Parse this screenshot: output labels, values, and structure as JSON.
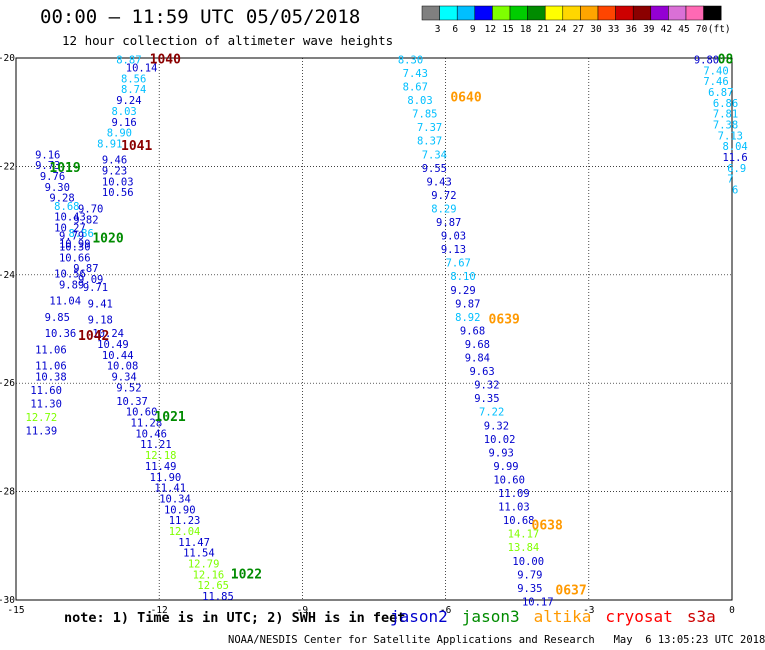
{
  "title": "00:00 – 11:59 UTC 05/05/2018",
  "subtitle": "12 hour collection of altimeter wave heights",
  "note": "note: 1) Time is in UTC; 2) SWH is in feet",
  "footer": "NOAA/NESDIS Center for Satellite Applications and Research   May  6 13:05:23 UTC 2018",
  "scale": {
    "labels": [
      "3",
      "6",
      "9",
      "12",
      "15",
      "18",
      "21",
      "24",
      "27",
      "30",
      "33",
      "36",
      "39",
      "42",
      "45",
      "70",
      "(ft)"
    ],
    "colors": [
      "#808080",
      "#00ffff",
      "#00bfff",
      "#0000ff",
      "#7fff00",
      "#00cd00",
      "#008b00",
      "#ffff00",
      "#ffd700",
      "#ffa500",
      "#ff4500",
      "#cd0000",
      "#8b0000",
      "#9400d3",
      "#da70d6",
      "#ff69b4",
      "#000000"
    ]
  },
  "legend": [
    {
      "name": "jason2",
      "color": "#0000cd"
    },
    {
      "name": "jason3",
      "color": "#008b00"
    },
    {
      "name": "altika",
      "color": "#ff9900"
    },
    {
      "name": "cryosat",
      "color": "#ff0000"
    },
    {
      "name": "s3a",
      "color": "#cc0000"
    }
  ],
  "chart_data": {
    "type": "scatter",
    "x_ticks": [
      "-15",
      "-12",
      "-9",
      "-6",
      "-3",
      "0"
    ],
    "y_ticks": [
      "-20",
      "-22",
      "-24",
      "-26",
      "-28",
      "-30"
    ],
    "xlim": [
      -15,
      0
    ],
    "ylim": [
      -30,
      -20
    ],
    "grid": true,
    "pass_labels": [
      {
        "text": "1040",
        "lon": -12.2,
        "lat": -20.1,
        "color": "#8b0000"
      },
      {
        "text": "1041",
        "lon": -12.8,
        "lat": -21.7,
        "color": "#8b0000"
      },
      {
        "text": "1019",
        "lon": -14.3,
        "lat": -22.1,
        "color": "#008b00"
      },
      {
        "text": "1020",
        "lon": -13.4,
        "lat": -23.4,
        "color": "#008b00"
      },
      {
        "text": "1042",
        "lon": -13.7,
        "lat": -25.2,
        "color": "#8b0000"
      },
      {
        "text": "1021",
        "lon": -12.1,
        "lat": -26.7,
        "color": "#008b00"
      },
      {
        "text": "1022",
        "lon": -10.5,
        "lat": -29.6,
        "color": "#008b00"
      },
      {
        "text": "0640",
        "lon": -5.9,
        "lat": -20.8,
        "color": "#ff9900"
      },
      {
        "text": "0639",
        "lon": -5.1,
        "lat": -24.9,
        "color": "#ff9900"
      },
      {
        "text": "0638",
        "lon": -4.2,
        "lat": -28.7,
        "color": "#ff9900"
      },
      {
        "text": "0637",
        "lon": -3.7,
        "lat": -29.9,
        "color": "#ff9900"
      },
      {
        "text": "08",
        "lon": -0.3,
        "lat": -20.1,
        "color": "#008b00"
      }
    ],
    "points": [
      {
        "v": "8.87",
        "lon": -12.9,
        "lat": -20.1,
        "c": "#00bfff"
      },
      {
        "v": "10.14",
        "lon": -12.7,
        "lat": -20.25,
        "c": "#0000cd"
      },
      {
        "v": "8.56",
        "lon": -12.8,
        "lat": -20.45,
        "c": "#00bfff"
      },
      {
        "v": "8.74",
        "lon": -12.8,
        "lat": -20.65,
        "c": "#00bfff"
      },
      {
        "v": "9.24",
        "lon": -12.9,
        "lat": -20.85,
        "c": "#0000cd"
      },
      {
        "v": "8.03",
        "lon": -13.0,
        "lat": -21.05,
        "c": "#00bfff"
      },
      {
        "v": "9.16",
        "lon": -13.0,
        "lat": -21.25,
        "c": "#0000cd"
      },
      {
        "v": "8.90",
        "lon": -13.1,
        "lat": -21.45,
        "c": "#00bfff"
      },
      {
        "v": "8.91",
        "lon": -13.3,
        "lat": -21.65,
        "c": "#00bfff"
      },
      {
        "v": "9.16",
        "lon": -14.6,
        "lat": -21.85,
        "c": "#0000cd"
      },
      {
        "v": "9.46",
        "lon": -13.2,
        "lat": -21.95,
        "c": "#0000cd"
      },
      {
        "v": "9.73",
        "lon": -14.6,
        "lat": -22.05,
        "c": "#0000cd"
      },
      {
        "v": "9.23",
        "lon": -13.2,
        "lat": -22.15,
        "c": "#0000cd"
      },
      {
        "v": "9.76",
        "lon": -14.5,
        "lat": -22.25,
        "c": "#0000cd"
      },
      {
        "v": "10.03",
        "lon": -13.2,
        "lat": -22.35,
        "c": "#0000cd"
      },
      {
        "v": "9.30",
        "lon": -14.4,
        "lat": -22.45,
        "c": "#0000cd"
      },
      {
        "v": "10.56",
        "lon": -13.2,
        "lat": -22.55,
        "c": "#0000cd"
      },
      {
        "v": "9.28",
        "lon": -14.3,
        "lat": -22.65,
        "c": "#0000cd"
      },
      {
        "v": "8.68",
        "lon": -14.2,
        "lat": -22.8,
        "c": "#00bfff"
      },
      {
        "v": "9.70",
        "lon": -13.7,
        "lat": -22.85,
        "c": "#0000cd"
      },
      {
        "v": "10.43",
        "lon": -14.2,
        "lat": -23.0,
        "c": "#0000cd"
      },
      {
        "v": "9.82",
        "lon": -13.8,
        "lat": -23.05,
        "c": "#0000cd"
      },
      {
        "v": "10.27",
        "lon": -14.2,
        "lat": -23.2,
        "c": "#0000cd"
      },
      {
        "v": "8.86",
        "lon": -13.9,
        "lat": -23.3,
        "c": "#00bfff"
      },
      {
        "v": "9.79",
        "lon": -14.1,
        "lat": -23.35,
        "c": "#0000cd"
      },
      {
        "v": "10.99",
        "lon": -14.1,
        "lat": -23.5,
        "c": "#0000cd"
      },
      {
        "v": "10.30",
        "lon": -14.1,
        "lat": -23.55,
        "c": "#0000cd"
      },
      {
        "v": "10.66",
        "lon": -14.1,
        "lat": -23.75,
        "c": "#0000cd"
      },
      {
        "v": "9.87",
        "lon": -13.8,
        "lat": -23.95,
        "c": "#0000cd"
      },
      {
        "v": "10.56",
        "lon": -14.2,
        "lat": -24.05,
        "c": "#0000cd"
      },
      {
        "v": "9.09",
        "lon": -13.7,
        "lat": -24.15,
        "c": "#0000cd"
      },
      {
        "v": "9.89",
        "lon": -14.1,
        "lat": -24.25,
        "c": "#0000cd"
      },
      {
        "v": "9.71",
        "lon": -13.6,
        "lat": -24.3,
        "c": "#0000cd"
      },
      {
        "v": "11.04",
        "lon": -14.3,
        "lat": -24.55,
        "c": "#0000cd"
      },
      {
        "v": "9.41",
        "lon": -13.5,
        "lat": -24.6,
        "c": "#0000cd"
      },
      {
        "v": "9.85",
        "lon": -14.4,
        "lat": -24.85,
        "c": "#0000cd"
      },
      {
        "v": "9.18",
        "lon": -13.5,
        "lat": -24.9,
        "c": "#0000cd"
      },
      {
        "v": "10.36",
        "lon": -14.4,
        "lat": -25.15,
        "c": "#0000cd"
      },
      {
        "v": "10.24",
        "lon": -13.4,
        "lat": -25.15,
        "c": "#0000cd"
      },
      {
        "v": "10.49",
        "lon": -13.3,
        "lat": -25.35,
        "c": "#0000cd"
      },
      {
        "v": "11.06",
        "lon": -14.6,
        "lat": -25.45,
        "c": "#0000cd"
      },
      {
        "v": "10.44",
        "lon": -13.2,
        "lat": -25.55,
        "c": "#0000cd"
      },
      {
        "v": "11.06",
        "lon": -14.6,
        "lat": -25.75,
        "c": "#0000cd"
      },
      {
        "v": "10.08",
        "lon": -13.1,
        "lat": -25.75,
        "c": "#0000cd"
      },
      {
        "v": "10.38",
        "lon": -14.6,
        "lat": -25.95,
        "c": "#0000cd"
      },
      {
        "v": "9.34",
        "lon": -13.0,
        "lat": -25.95,
        "c": "#0000cd"
      },
      {
        "v": "11.60",
        "lon": -14.7,
        "lat": -26.2,
        "c": "#0000cd"
      },
      {
        "v": "9.52",
        "lon": -12.9,
        "lat": -26.15,
        "c": "#0000cd"
      },
      {
        "v": "11.30",
        "lon": -14.7,
        "lat": -26.45,
        "c": "#0000cd"
      },
      {
        "v": "10.37",
        "lon": -12.9,
        "lat": -26.4,
        "c": "#0000cd"
      },
      {
        "v": "12.72",
        "lon": -14.8,
        "lat": -26.7,
        "c": "#7fff00"
      },
      {
        "v": "10.60",
        "lon": -12.7,
        "lat": -26.6,
        "c": "#0000cd"
      },
      {
        "v": "11.28",
        "lon": -12.6,
        "lat": -26.8,
        "c": "#0000cd"
      },
      {
        "v": "11.39",
        "lon": -14.8,
        "lat": -26.95,
        "c": "#0000cd"
      },
      {
        "v": "10.46",
        "lon": -12.5,
        "lat": -27.0,
        "c": "#0000cd"
      },
      {
        "v": "11.21",
        "lon": -12.4,
        "lat": -27.2,
        "c": "#0000cd"
      },
      {
        "v": "12.18",
        "lon": -12.3,
        "lat": -27.4,
        "c": "#7fff00"
      },
      {
        "v": "11.49",
        "lon": -12.3,
        "lat": -27.6,
        "c": "#0000cd"
      },
      {
        "v": "11.90",
        "lon": -12.2,
        "lat": -27.8,
        "c": "#0000cd"
      },
      {
        "v": "11.41",
        "lon": -12.1,
        "lat": -28.0,
        "c": "#0000cd"
      },
      {
        "v": "10.34",
        "lon": -12.0,
        "lat": -28.2,
        "c": "#0000cd"
      },
      {
        "v": "10.90",
        "lon": -11.9,
        "lat": -28.4,
        "c": "#0000cd"
      },
      {
        "v": "11.23",
        "lon": -11.8,
        "lat": -28.6,
        "c": "#0000cd"
      },
      {
        "v": "12.04",
        "lon": -11.8,
        "lat": -28.8,
        "c": "#7fff00"
      },
      {
        "v": "11.47",
        "lon": -11.6,
        "lat": -29.0,
        "c": "#0000cd"
      },
      {
        "v": "11.54",
        "lon": -11.5,
        "lat": -29.2,
        "c": "#0000cd"
      },
      {
        "v": "12.79",
        "lon": -11.4,
        "lat": -29.4,
        "c": "#7fff00"
      },
      {
        "v": "12.16",
        "lon": -11.3,
        "lat": -29.6,
        "c": "#7fff00"
      },
      {
        "v": "12.65",
        "lon": -11.2,
        "lat": -29.8,
        "c": "#7fff00"
      },
      {
        "v": "11.85",
        "lon": -11.1,
        "lat": -30.0,
        "c": "#0000cd"
      },
      {
        "v": "8.30",
        "lon": -7.0,
        "lat": -20.1,
        "c": "#00bfff"
      },
      {
        "v": "7.43",
        "lon": -6.9,
        "lat": -20.35,
        "c": "#00bfff"
      },
      {
        "v": "8.67",
        "lon": -6.9,
        "lat": -20.6,
        "c": "#00bfff"
      },
      {
        "v": "8.03",
        "lon": -6.8,
        "lat": -20.85,
        "c": "#00bfff"
      },
      {
        "v": "7.85",
        "lon": -6.7,
        "lat": -21.1,
        "c": "#00bfff"
      },
      {
        "v": "7.37",
        "lon": -6.6,
        "lat": -21.35,
        "c": "#00bfff"
      },
      {
        "v": "8.37",
        "lon": -6.6,
        "lat": -21.6,
        "c": "#00bfff"
      },
      {
        "v": "7.34",
        "lon": -6.5,
        "lat": -21.85,
        "c": "#00bfff"
      },
      {
        "v": "9.55",
        "lon": -6.5,
        "lat": -22.1,
        "c": "#0000cd"
      },
      {
        "v": "9.43",
        "lon": -6.4,
        "lat": -22.35,
        "c": "#0000cd"
      },
      {
        "v": "9.72",
        "lon": -6.3,
        "lat": -22.6,
        "c": "#0000cd"
      },
      {
        "v": "8.29",
        "lon": -6.3,
        "lat": -22.85,
        "c": "#00bfff"
      },
      {
        "v": "9.87",
        "lon": -6.2,
        "lat": -23.1,
        "c": "#0000cd"
      },
      {
        "v": "9.03",
        "lon": -6.1,
        "lat": -23.35,
        "c": "#0000cd"
      },
      {
        "v": "9.13",
        "lon": -6.1,
        "lat": -23.6,
        "c": "#0000cd"
      },
      {
        "v": "7.67",
        "lon": -6.0,
        "lat": -23.85,
        "c": "#00bfff"
      },
      {
        "v": "8.10",
        "lon": -5.9,
        "lat": -24.1,
        "c": "#00bfff"
      },
      {
        "v": "9.29",
        "lon": -5.9,
        "lat": -24.35,
        "c": "#0000cd"
      },
      {
        "v": "9.87",
        "lon": -5.8,
        "lat": -24.6,
        "c": "#0000cd"
      },
      {
        "v": "8.92",
        "lon": -5.8,
        "lat": -24.85,
        "c": "#00bfff"
      },
      {
        "v": "9.68",
        "lon": -5.7,
        "lat": -25.1,
        "c": "#0000cd"
      },
      {
        "v": "9.68",
        "lon": -5.6,
        "lat": -25.35,
        "c": "#0000cd"
      },
      {
        "v": "9.84",
        "lon": -5.6,
        "lat": -25.6,
        "c": "#0000cd"
      },
      {
        "v": "9.63",
        "lon": -5.5,
        "lat": -25.85,
        "c": "#0000cd"
      },
      {
        "v": "9.32",
        "lon": -5.4,
        "lat": -26.1,
        "c": "#0000cd"
      },
      {
        "v": "9.35",
        "lon": -5.4,
        "lat": -26.35,
        "c": "#0000cd"
      },
      {
        "v": "7.22",
        "lon": -5.3,
        "lat": -26.6,
        "c": "#00bfff"
      },
      {
        "v": "9.32",
        "lon": -5.2,
        "lat": -26.85,
        "c": "#0000cd"
      },
      {
        "v": "10.02",
        "lon": -5.2,
        "lat": -27.1,
        "c": "#0000cd"
      },
      {
        "v": "9.93",
        "lon": -5.1,
        "lat": -27.35,
        "c": "#0000cd"
      },
      {
        "v": "9.99",
        "lon": -5.0,
        "lat": -27.6,
        "c": "#0000cd"
      },
      {
        "v": "10.60",
        "lon": -5.0,
        "lat": -27.85,
        "c": "#0000cd"
      },
      {
        "v": "11.09",
        "lon": -4.9,
        "lat": -28.1,
        "c": "#0000cd"
      },
      {
        "v": "11.03",
        "lon": -4.9,
        "lat": -28.35,
        "c": "#0000cd"
      },
      {
        "v": "10.68",
        "lon": -4.8,
        "lat": -28.6,
        "c": "#0000cd"
      },
      {
        "v": "14.17",
        "lon": -4.7,
        "lat": -28.85,
        "c": "#7fff00"
      },
      {
        "v": "13.84",
        "lon": -4.7,
        "lat": -29.1,
        "c": "#7fff00"
      },
      {
        "v": "10.00",
        "lon": -4.6,
        "lat": -29.35,
        "c": "#0000cd"
      },
      {
        "v": "9.79",
        "lon": -4.5,
        "lat": -29.6,
        "c": "#0000cd"
      },
      {
        "v": "9.35",
        "lon": -4.5,
        "lat": -29.85,
        "c": "#0000cd"
      },
      {
        "v": "10.17",
        "lon": -4.4,
        "lat": -30.1,
        "c": "#0000cd"
      },
      {
        "v": "9.80",
        "lon": -0.8,
        "lat": -20.1,
        "c": "#0000cd"
      },
      {
        "v": "7.40",
        "lon": -0.6,
        "lat": -20.3,
        "c": "#00bfff"
      },
      {
        "v": "7.46",
        "lon": -0.6,
        "lat": -20.5,
        "c": "#00bfff"
      },
      {
        "v": "6.87",
        "lon": -0.5,
        "lat": -20.7,
        "c": "#00bfff"
      },
      {
        "v": "6.86",
        "lon": -0.4,
        "lat": -20.9,
        "c": "#00bfff"
      },
      {
        "v": "7.81",
        "lon": -0.4,
        "lat": -21.1,
        "c": "#00bfff"
      },
      {
        "v": "7.38",
        "lon": -0.4,
        "lat": -21.3,
        "c": "#00bfff"
      },
      {
        "v": "7.13",
        "lon": -0.3,
        "lat": -21.5,
        "c": "#00bfff"
      },
      {
        "v": "8.04",
        "lon": -0.2,
        "lat": -21.7,
        "c": "#00bfff"
      },
      {
        "v": "11.6",
        "lon": -0.2,
        "lat": -21.9,
        "c": "#0000cd"
      },
      {
        "v": "6.9",
        "lon": -0.1,
        "lat": -22.1,
        "c": "#00bfff"
      },
      {
        "v": "7",
        "lon": -0.1,
        "lat": -22.3,
        "c": "#00bfff"
      },
      {
        "v": "6",
        "lon": 0.0,
        "lat": -22.5,
        "c": "#00bfff"
      }
    ]
  }
}
